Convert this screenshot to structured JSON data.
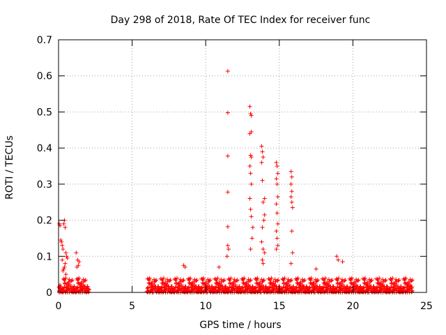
{
  "chart_data": {
    "type": "scatter",
    "title": "Day 298 of 2018, Rate Of TEC Index for receiver func",
    "xlabel": "GPS time / hours",
    "ylabel": "ROTI / TECUs",
    "xlim": [
      0,
      25
    ],
    "ylim": [
      0,
      0.7
    ],
    "x_ticks": [
      0,
      5,
      10,
      15,
      20,
      25
    ],
    "y_ticks": [
      0,
      0.1,
      0.2,
      0.3,
      0.4,
      0.5,
      0.6,
      0.7
    ],
    "x_tick_labels": [
      "0",
      "5",
      "10",
      "15",
      "20",
      "25"
    ],
    "y_tick_labels": [
      "0",
      "0.1",
      "0.2",
      "0.3",
      "0.4",
      "0.5",
      "0.6",
      "0.7"
    ],
    "grid": true,
    "marker": "+",
    "color": "#ff0000",
    "series": [
      {
        "name": "ROTI",
        "x": [
          0.05,
          0.1,
          0.15,
          0.2,
          0.25,
          0.3,
          0.35,
          0.4,
          0.45,
          0.5,
          0.55,
          0.6,
          0.3,
          0.4,
          0.5,
          0.25,
          0.45,
          0.35,
          1.2,
          1.3,
          1.4,
          1.35,
          1.25,
          11.5,
          11.5,
          11.5,
          11.5,
          11.5,
          11.5,
          11.45,
          11.55,
          13.0,
          13.05,
          13.1,
          13.1,
          13.0,
          13.05,
          13.1,
          13.0,
          13.05,
          13.1,
          13.0,
          13.05,
          13.1,
          13.2,
          13.15,
          13.05,
          13.8,
          13.85,
          13.9,
          13.8,
          13.85,
          14.0,
          13.9,
          14.0,
          13.95,
          13.85,
          13.8,
          13.9,
          14.0,
          13.85,
          13.9,
          14.8,
          14.85,
          14.9,
          14.8,
          14.85,
          14.9,
          14.8,
          14.85,
          14.9,
          14.8,
          14.85,
          14.9,
          14.8,
          15.8,
          15.85,
          15.8,
          15.85,
          15.8,
          15.85,
          15.9,
          15.85,
          15.9,
          15.8,
          18.9,
          19.0,
          19.3,
          8.5,
          8.6,
          10.9,
          17.5
        ],
        "y": [
          0.19,
          0.185,
          0.145,
          0.14,
          0.13,
          0.12,
          0.19,
          0.2,
          0.18,
          0.11,
          0.1,
          0.095,
          0.06,
          0.07,
          0.05,
          0.09,
          0.08,
          0.065,
          0.11,
          0.09,
          0.085,
          0.075,
          0.07,
          0.613,
          0.498,
          0.378,
          0.278,
          0.182,
          0.13,
          0.1,
          0.12,
          0.515,
          0.495,
          0.49,
          0.445,
          0.44,
          0.38,
          0.375,
          0.35,
          0.33,
          0.3,
          0.26,
          0.23,
          0.21,
          0.18,
          0.15,
          0.12,
          0.405,
          0.39,
          0.375,
          0.36,
          0.31,
          0.26,
          0.25,
          0.215,
          0.2,
          0.18,
          0.14,
          0.12,
          0.11,
          0.09,
          0.08,
          0.36,
          0.35,
          0.33,
          0.315,
          0.3,
          0.265,
          0.245,
          0.22,
          0.19,
          0.17,
          0.15,
          0.13,
          0.12,
          0.335,
          0.32,
          0.3,
          0.28,
          0.265,
          0.25,
          0.235,
          0.17,
          0.11,
          0.08,
          0.1,
          0.09,
          0.085,
          0.075,
          0.07,
          0.07,
          0.065
        ]
      }
    ],
    "dense_band_ranges_hours": [
      [
        0.0,
        2.1
      ],
      [
        6.0,
        24.0
      ]
    ],
    "dense_band_typical_roti": [
      0.0,
      0.04
    ]
  }
}
